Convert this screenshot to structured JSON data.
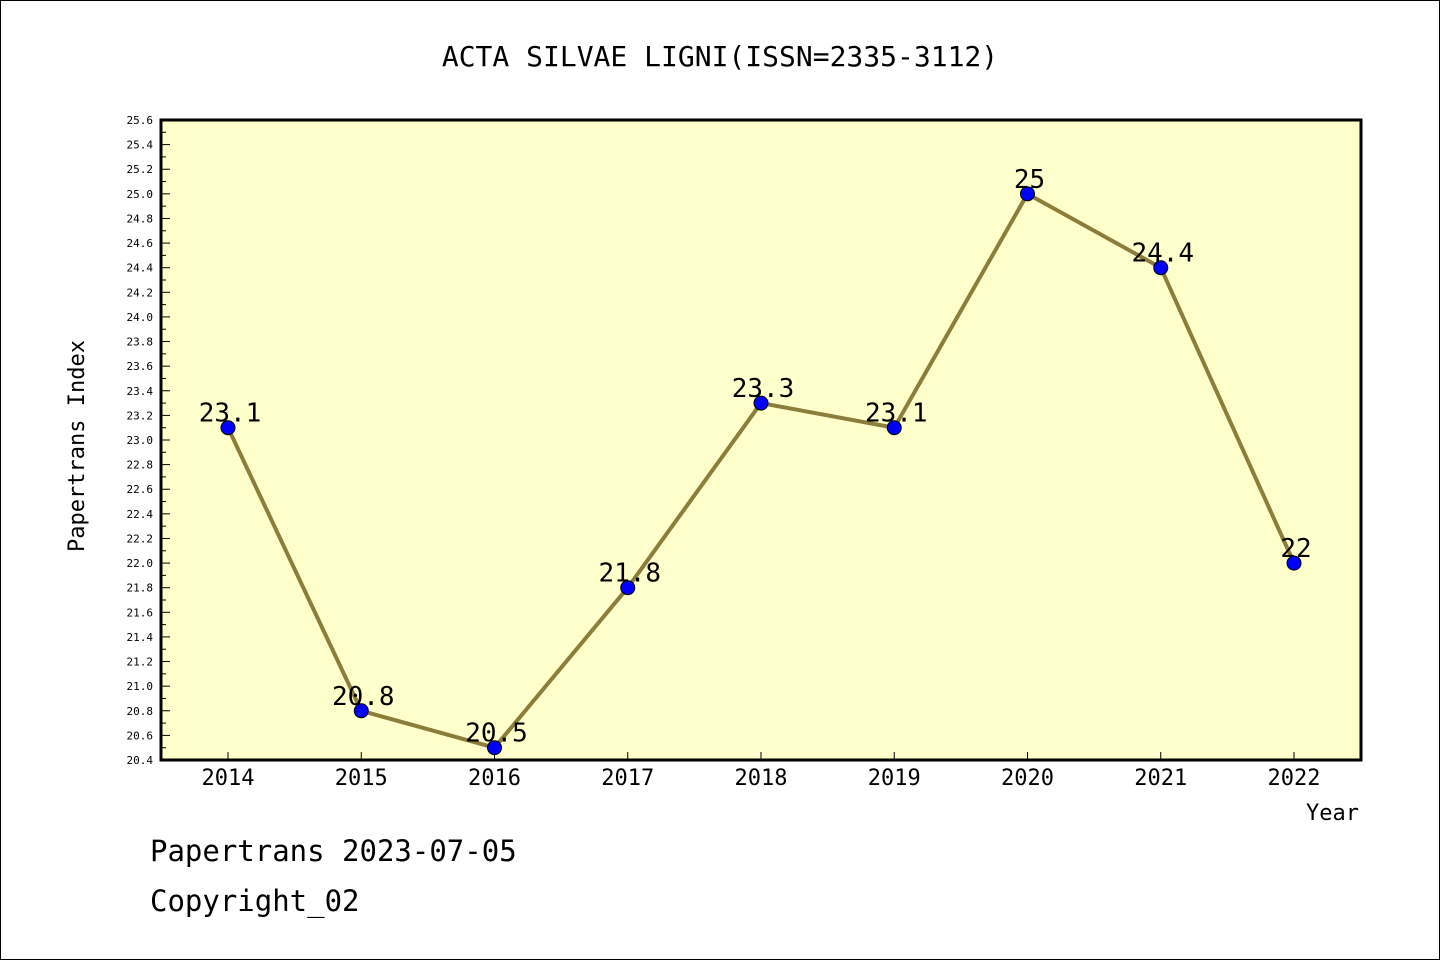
{
  "chart_data": {
    "type": "line",
    "title": "ACTA SILVAE LIGNI(ISSN=2335-3112)",
    "xlabel": "Year",
    "ylabel": "Papertrans Index",
    "categories": [
      "2014",
      "2015",
      "2016",
      "2017",
      "2018",
      "2019",
      "2020",
      "2021",
      "2022"
    ],
    "series": [
      {
        "values": [
          23.1,
          20.8,
          20.5,
          21.8,
          23.3,
          23.1,
          25.0,
          24.4,
          22.0
        ],
        "labels": [
          "23.1",
          "20.8",
          "20.5",
          "21.8",
          "23.3",
          "23.1",
          "25",
          "24.4",
          "22"
        ]
      }
    ],
    "ylim": [
      20.4,
      25.6
    ],
    "yticks": [
      "20.4",
      "20.6",
      "20.8",
      "21.0",
      "21.2",
      "21.4",
      "21.6",
      "21.8",
      "22.0",
      "22.2",
      "22.4",
      "22.6",
      "22.8",
      "23.0",
      "23.2",
      "23.4",
      "23.6",
      "23.8",
      "24.0",
      "24.2",
      "24.4",
      "24.6",
      "24.8",
      "25.0",
      "25.2",
      "25.4",
      "25.6"
    ],
    "grid": false,
    "colors": {
      "plot_background": "#ffffcc",
      "line": "#8b7d3a",
      "marker": "#0000ff"
    }
  },
  "footer": {
    "source": "Papertrans 2023-07-05",
    "copyright": "Copyright_02"
  }
}
